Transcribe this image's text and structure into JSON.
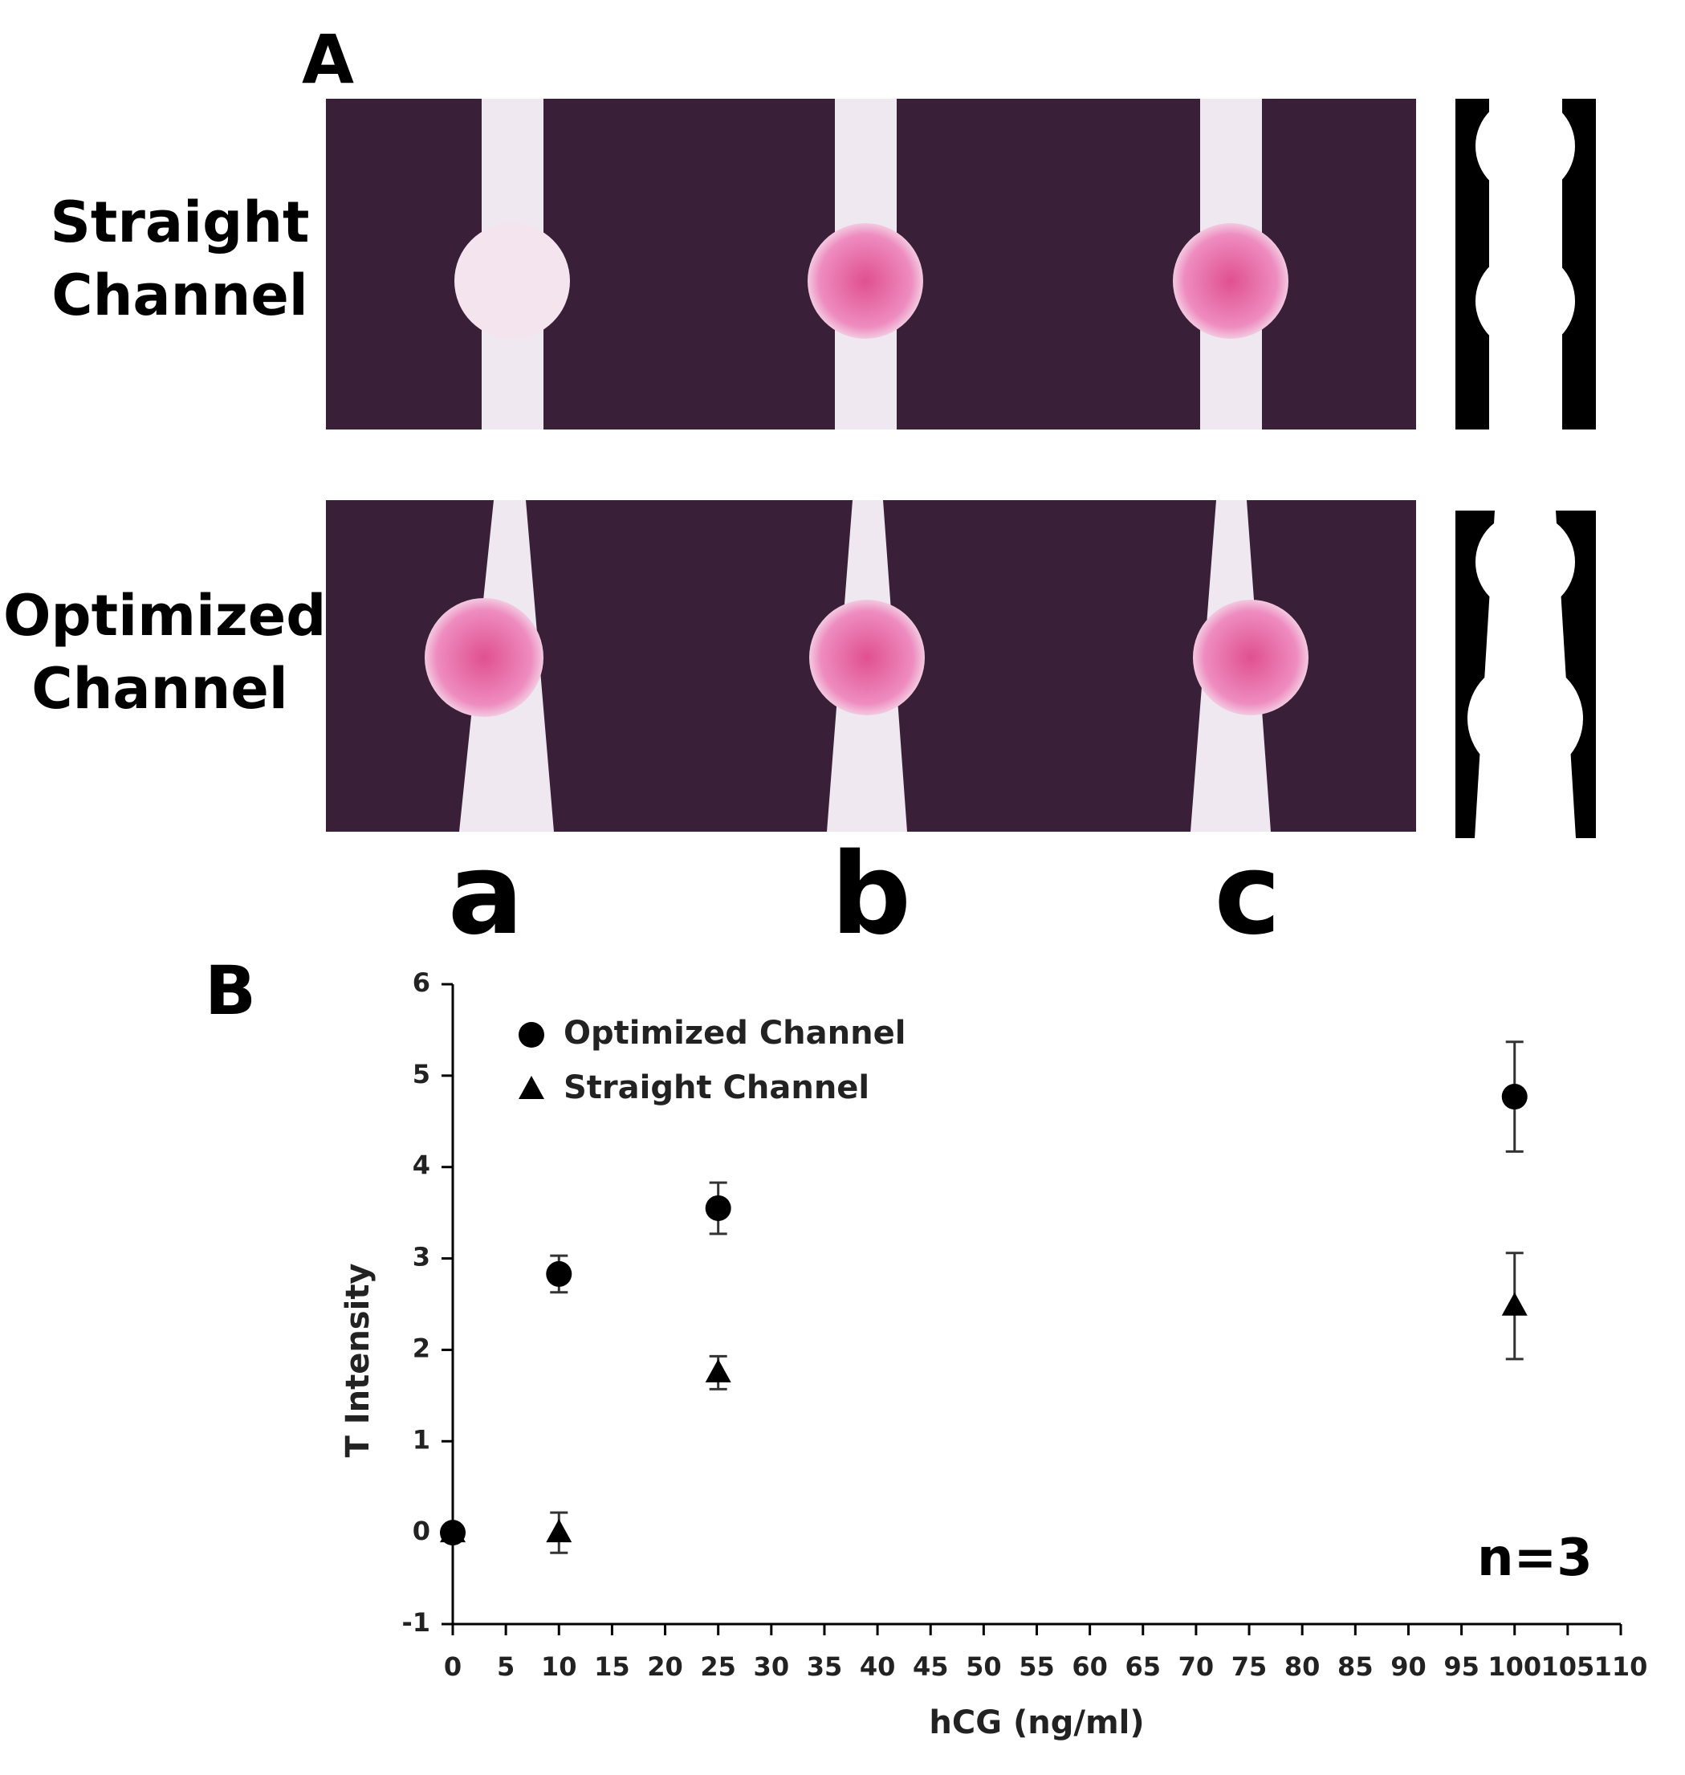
{
  "panel_a": {
    "label": "A",
    "rows": [
      "Straight Channel",
      "Optimized Channel"
    ],
    "columns": [
      "a",
      "b",
      "c"
    ]
  },
  "chart_data": {
    "type": "scatter",
    "panel_label": "B",
    "annotation": "n=3",
    "x_label": "hCG (ng/ml)",
    "y_label": "T Intensity",
    "x": [
      0,
      10,
      25,
      100
    ],
    "series": [
      {
        "name": "Optimized Channel",
        "color": "#000000",
        "marker": "circle",
        "values": [
          0,
          2.83,
          3.55,
          4.77
        ],
        "errors": [
          null,
          0.2,
          0.28,
          0.6
        ]
      },
      {
        "name": "Straight Channel",
        "color": "#000000",
        "marker": "triangle",
        "values": [
          0,
          0,
          1.75,
          2.48
        ],
        "errors": [
          null,
          0.22,
          0.18,
          0.58
        ]
      }
    ],
    "xlim": [
      0,
      110
    ],
    "xticks": [
      0,
      5,
      10,
      15,
      20,
      25,
      30,
      35,
      40,
      45,
      50,
      55,
      60,
      65,
      70,
      75,
      80,
      85,
      90,
      95,
      100,
      105,
      110
    ],
    "ylim": [
      -1,
      6
    ],
    "yticks": [
      -1,
      0,
      1,
      2,
      3,
      4,
      5,
      6
    ],
    "legend": "upper left"
  }
}
